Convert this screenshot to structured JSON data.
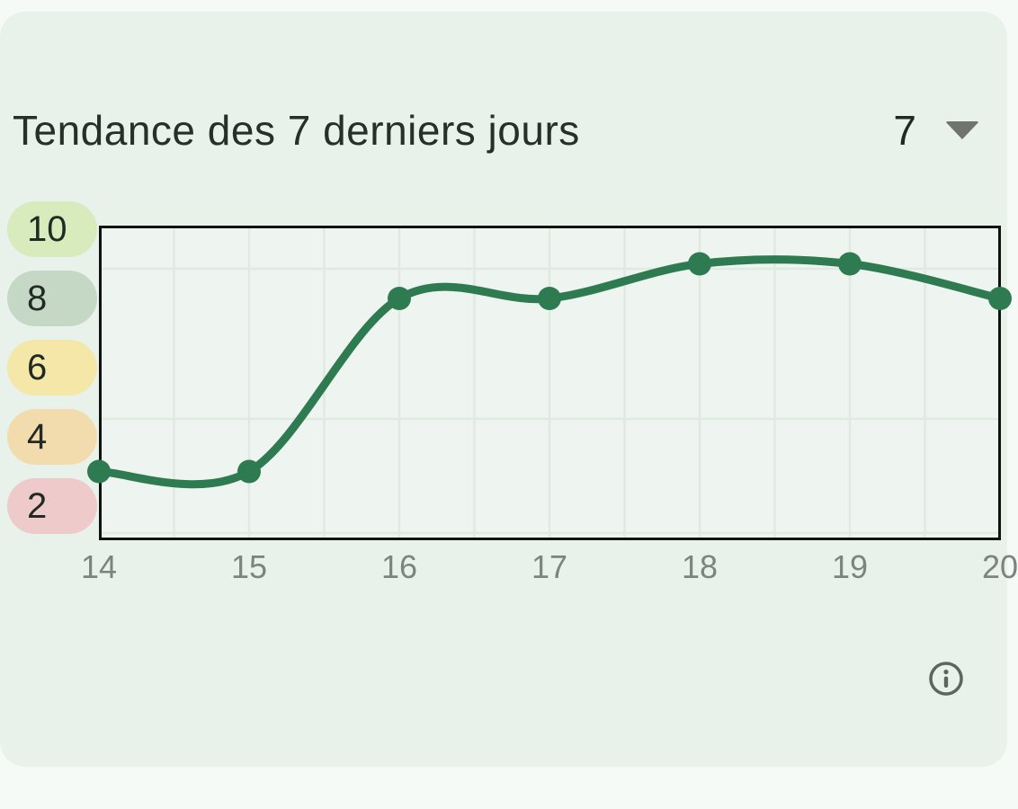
{
  "card": {
    "title": "Tendance des 7 derniers jours",
    "period_selector": {
      "value": "7"
    }
  },
  "chart_data": {
    "type": "line",
    "title": "Tendance des 7 derniers jours",
    "x": [
      14,
      15,
      16,
      17,
      18,
      19,
      20
    ],
    "x_tick_labels": [
      "14",
      "15",
      "16",
      "17",
      "18",
      "19",
      "20"
    ],
    "series": [
      {
        "name": "tendance",
        "values": [
          3,
          3,
          8,
          8,
          9,
          9,
          8
        ]
      }
    ],
    "xlim": [
      14,
      20
    ],
    "ylim": [
      1,
      10.1
    ],
    "grid": true,
    "legend": "none",
    "line_color": "#2e7b52",
    "marker_color": "#2e7b52",
    "y_axis_pills": [
      {
        "label": "10",
        "value": 10,
        "color": "#d8ebbd"
      },
      {
        "label": "8",
        "value": 8,
        "color": "#c5d8c6"
      },
      {
        "label": "6",
        "value": 6,
        "color": "#f4e7a8"
      },
      {
        "label": "4",
        "value": 4,
        "color": "#f2dcae"
      },
      {
        "label": "2",
        "value": 2,
        "color": "#efcaca"
      }
    ]
  },
  "colors": {
    "page_bg": "#f6faf7",
    "card_bg": "#e8f1ea",
    "title_text": "#253029",
    "plot_bg": "#eef4ef",
    "plot_border": "#0e130f",
    "gridline": "#e0e9e2",
    "x_label_text": "#7b847d",
    "info_icon": "#5a675c",
    "caret": "#6f746f"
  }
}
